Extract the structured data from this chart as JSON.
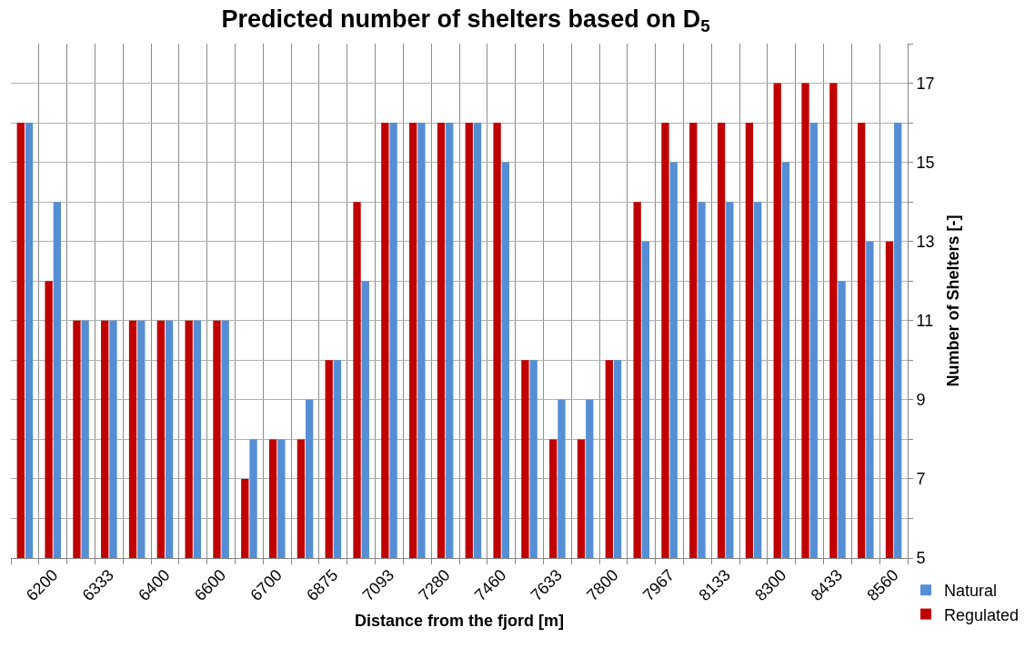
{
  "chart_data": {
    "type": "bar",
    "title": "Predicted number of shelters based on D$_{5}$",
    "xlabel": "Distance from the fjord [m]",
    "ylabel": "Number of Shelters [-]",
    "categories": [
      null,
      "6200",
      null,
      "6333",
      null,
      "6400",
      null,
      "6600",
      null,
      "6700",
      null,
      "6875",
      null,
      "7093",
      null,
      "7280",
      null,
      "7460",
      null,
      "7633",
      null,
      "7800",
      null,
      "7967",
      null,
      "8133",
      null,
      "8300",
      null,
      "8433",
      null,
      "8560"
    ],
    "series": [
      {
        "name": "Regulated",
        "color": "#c00000",
        "values": [
          16,
          12,
          11,
          11,
          11,
          11,
          11,
          11,
          7,
          8,
          8,
          10,
          14,
          16,
          16,
          16,
          16,
          16,
          10,
          8,
          8,
          10,
          14,
          16,
          16,
          16,
          16,
          17,
          17,
          17,
          16,
          13
        ]
      },
      {
        "name": "Natural",
        "color": "#558ed5",
        "values": [
          16,
          14,
          11,
          11,
          11,
          11,
          11,
          11,
          8,
          8,
          9,
          10,
          12,
          16,
          16,
          16,
          16,
          15,
          10,
          9,
          9,
          10,
          13,
          15,
          14,
          14,
          14,
          15,
          16,
          12,
          13,
          16
        ]
      }
    ],
    "ylim": [
      5,
      18
    ],
    "yticks": [
      5,
      {
        "value": 6,
        "label": null
      },
      7,
      {
        "value": 8,
        "label": null
      },
      9,
      {
        "value": 10,
        "label": null
      },
      11,
      {
        "value": 12,
        "label": null
      },
      13,
      {
        "value": 14,
        "label": null
      },
      15,
      {
        "value": 16,
        "label": null
      },
      17,
      {
        "value": 18,
        "label": null
      }
    ],
    "grid": true,
    "legend": "bottom right"
  }
}
